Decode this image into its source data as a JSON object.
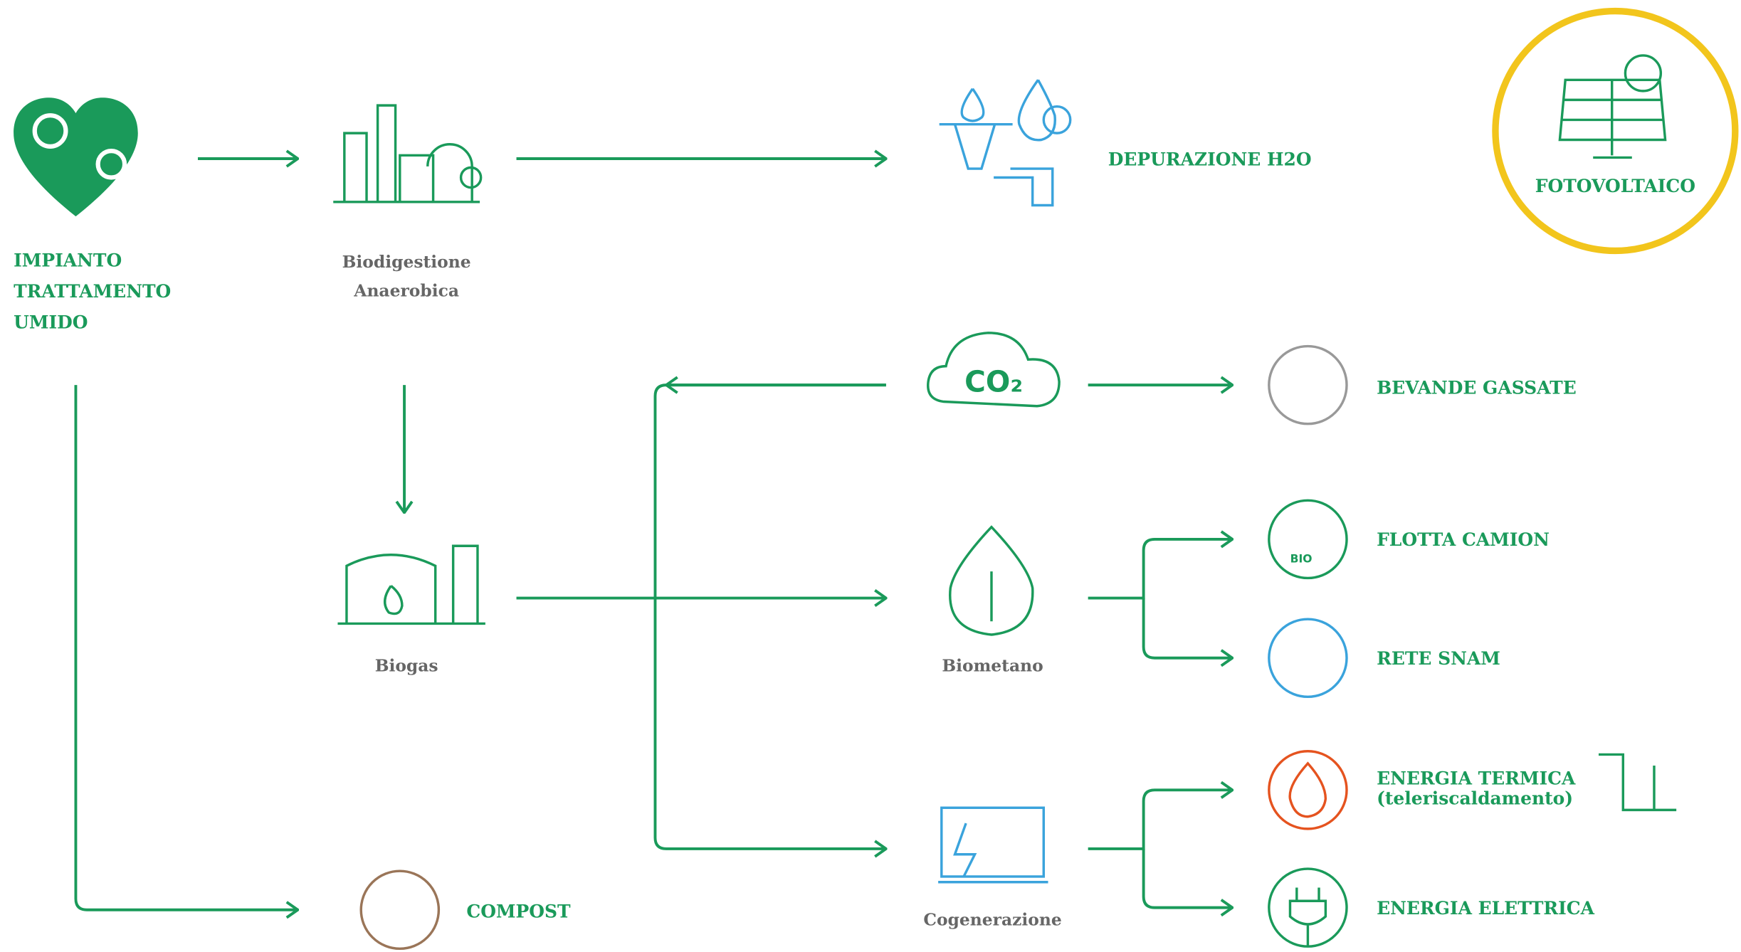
{
  "nodes": {
    "impianto": {
      "lines": [
        "IMPIANTO",
        "TRATTAMENTO",
        "UMIDO"
      ]
    },
    "biodigestione": {
      "lines": [
        "Biodigestione",
        "Anaerobica"
      ]
    },
    "depurazione": {
      "label": "DEPURAZIONE H2O"
    },
    "fotovoltaico": {
      "label": "FOTOVOLTAICO"
    },
    "co2": {
      "icon_text": "CO₂"
    },
    "bevande": {
      "label": "BEVANDE GASSATE"
    },
    "biogas": {
      "label": "Biogas"
    },
    "biometano": {
      "label": "Biometano"
    },
    "flotta": {
      "label": "FLOTTA CAMION",
      "icon_text": "BIO"
    },
    "rete": {
      "label": "RETE SNAM"
    },
    "cogenerazione": {
      "label": "Cogenerazione"
    },
    "termica": {
      "lines": [
        "ENERGIA TERMICA",
        "(teleriscaldamento)"
      ]
    },
    "elettrica": {
      "label": "ENERGIA ELETTRICA"
    },
    "compost": {
      "label": "COMPOST"
    }
  }
}
